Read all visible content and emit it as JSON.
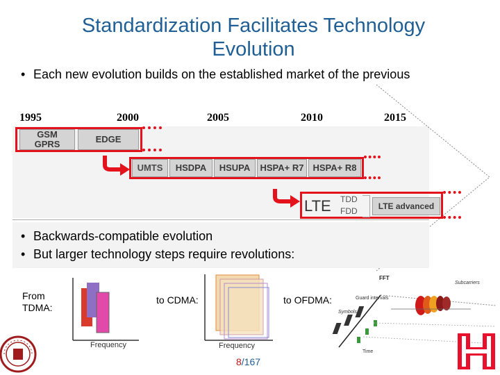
{
  "slide": {
    "title": "Standardization Facilitates Technology Evolution",
    "bullet_top": "Each new evolution builds on the established market of the previous",
    "bullets_mid": [
      "Backwards-compatible evolution",
      "But larger technology steps require revolutions:"
    ],
    "page_current": "8",
    "page_total": "/167"
  },
  "timeline": {
    "years": [
      "1995",
      "2000",
      "2005",
      "2010",
      "2015"
    ],
    "row1": {
      "gsm_gprs_line1": "GSM",
      "gsm_gprs_line2": "GPRS",
      "edge": "EDGE"
    },
    "row2": [
      "UMTS",
      "HSDPA",
      "HSUPA",
      "HSPA+ R7",
      "HSPA+ R8"
    ],
    "row3": {
      "lte": "LTE",
      "tdd": "TDD",
      "fdd": "FDD",
      "lte_advanced": "LTE advanced"
    }
  },
  "figures": {
    "tdma": {
      "caption_line1": "From",
      "caption_line2": "TDMA:",
      "xlabel": "Frequency"
    },
    "cdma": {
      "caption": "to CDMA:",
      "xlabel": "Frequency"
    },
    "ofdma": {
      "caption": "to OFDMA:",
      "fft": "FFT",
      "subcarriers": "Subcarriers",
      "guard": "Guard intervals",
      "symbols": "Symbols",
      "time": "Time"
    }
  },
  "colors": {
    "title": "#1f5f95",
    "accent_red": "#e3121b",
    "box_gray": "#d4d4d4"
  },
  "logos": {
    "left_text": "PEKING UNIVERSITY 1898",
    "right": "H-monogram-logo"
  }
}
